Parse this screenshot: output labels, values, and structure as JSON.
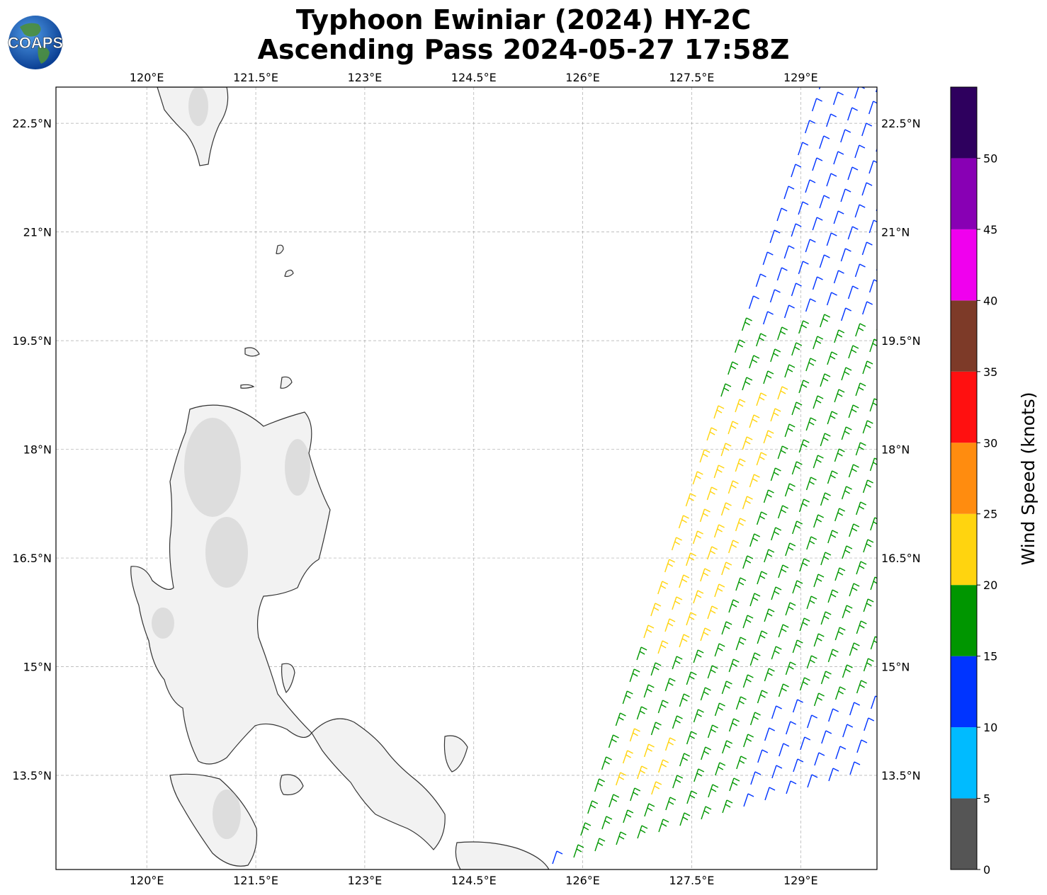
{
  "title": {
    "line1": "Typhoon Ewiniar (2024) HY-2C",
    "line2": "Ascending Pass 2024-05-27 17:58Z"
  },
  "logo": {
    "text": "COAPS",
    "icon": "globe-logo-icon"
  },
  "map": {
    "lon_ticks": [
      "120°E",
      "121.5°E",
      "123°E",
      "124.5°E",
      "126°E",
      "127.5°E",
      "129°E"
    ],
    "lat_ticks": [
      "22.5°N",
      "21°N",
      "19.5°N",
      "18°N",
      "16.5°N",
      "15°N",
      "13.5°N"
    ],
    "lon_values": [
      120,
      121.5,
      123,
      124.5,
      126,
      127.5,
      129
    ],
    "lat_values": [
      22.5,
      21,
      19.5,
      18,
      16.5,
      15,
      13.5
    ],
    "lon_range": [
      118.75,
      130.05
    ],
    "lat_range": [
      12.2,
      23.0
    ],
    "grid": true,
    "land_fill": "#f2f2f2",
    "coast_color": "#333333"
  },
  "wind_barbs": {
    "swath_description": "ascending scatterometer swath",
    "colors": {
      "yellow": "#ffd40f",
      "green": "#009600",
      "blue": "#0034ff"
    }
  },
  "colorbar": {
    "label": "Wind Speed (knots)",
    "ticks": [
      "0",
      "5",
      "10",
      "15",
      "20",
      "25",
      "30",
      "35",
      "40",
      "45",
      "50"
    ],
    "bins": [
      {
        "from": 0,
        "to": 5,
        "color": "#555555"
      },
      {
        "from": 5,
        "to": 10,
        "color": "#00bbff"
      },
      {
        "from": 10,
        "to": 15,
        "color": "#0034ff"
      },
      {
        "from": 15,
        "to": 20,
        "color": "#009600"
      },
      {
        "from": 20,
        "to": 25,
        "color": "#ffd40f"
      },
      {
        "from": 25,
        "to": 30,
        "color": "#ff8c0f"
      },
      {
        "from": 30,
        "to": 35,
        "color": "#ff1010"
      },
      {
        "from": 35,
        "to": 40,
        "color": "#7d3a28"
      },
      {
        "from": 40,
        "to": 45,
        "color": "#f000ee"
      },
      {
        "from": 45,
        "to": 50,
        "color": "#8800b4"
      },
      {
        "from": 50,
        "to": 55,
        "color": "#2e005e"
      }
    ]
  }
}
